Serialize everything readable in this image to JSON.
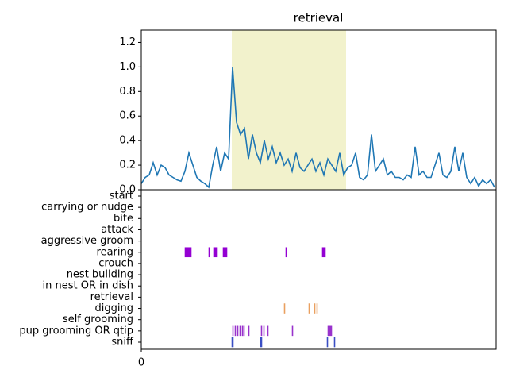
{
  "chart_data": [
    {
      "type": "line",
      "title": "retrieval",
      "color": "#1f77b4",
      "span": [
        114,
        258
      ],
      "span_color": "#f2f2cc",
      "xlim": [
        0,
        447
      ],
      "ylim": [
        0,
        1.3
      ],
      "yticks": [
        {
          "value": 0,
          "label": "0.0"
        },
        0.2,
        0.4,
        0.6,
        0.8,
        {
          "value": 1,
          "label": "1.0"
        },
        1.2
      ],
      "x": [
        0,
        5,
        10,
        15,
        20,
        25,
        30,
        35,
        40,
        45,
        50,
        55,
        60,
        65,
        70,
        75,
        80,
        85,
        90,
        95,
        100,
        105,
        110,
        115,
        120,
        125,
        130,
        135,
        140,
        145,
        150,
        155,
        160,
        165,
        170,
        175,
        180,
        185,
        190,
        195,
        200,
        205,
        210,
        215,
        220,
        225,
        230,
        235,
        240,
        245,
        250,
        255,
        260,
        265,
        270,
        275,
        280,
        285,
        290,
        295,
        300,
        305,
        310,
        315,
        320,
        325,
        330,
        335,
        340,
        345,
        350,
        355,
        360,
        365,
        370,
        375,
        380,
        385,
        390,
        395,
        400,
        405,
        410,
        415,
        420,
        425,
        430,
        435,
        440,
        445
      ],
      "values": [
        0.05,
        0.1,
        0.12,
        0.22,
        0.12,
        0.2,
        0.18,
        0.12,
        0.1,
        0.08,
        0.07,
        0.15,
        0.3,
        0.2,
        0.1,
        0.07,
        0.05,
        0.02,
        0.2,
        0.35,
        0.15,
        0.3,
        0.25,
        1.0,
        0.55,
        0.45,
        0.5,
        0.25,
        0.45,
        0.3,
        0.22,
        0.4,
        0.25,
        0.35,
        0.22,
        0.3,
        0.2,
        0.25,
        0.15,
        0.3,
        0.18,
        0.15,
        0.2,
        0.25,
        0.15,
        0.22,
        0.12,
        0.25,
        0.2,
        0.15,
        0.3,
        0.12,
        0.18,
        0.2,
        0.3,
        0.1,
        0.08,
        0.12,
        0.45,
        0.15,
        0.2,
        0.25,
        0.12,
        0.15,
        0.1,
        0.1,
        0.08,
        0.12,
        0.1,
        0.35,
        0.12,
        0.15,
        0.1,
        0.1,
        0.2,
        0.3,
        0.12,
        0.1,
        0.15,
        0.35,
        0.15,
        0.3,
        0.1,
        0.05,
        0.1,
        0.03,
        0.08,
        0.05,
        0.08,
        0.02
      ]
    },
    {
      "type": "ethogram",
      "xlim": [
        0,
        447
      ],
      "xticks": [
        0
      ],
      "rows": [
        {
          "name": "start",
          "color": "#9400d3",
          "events": []
        },
        {
          "name": "carrying or nudge",
          "color": "#9400d3",
          "events": []
        },
        {
          "name": "bite",
          "color": "#9400d3",
          "events": []
        },
        {
          "name": "attack",
          "color": "#9400d3",
          "events": []
        },
        {
          "name": "aggressive groom",
          "color": "#9400d3",
          "events": []
        },
        {
          "name": "rearing",
          "color": "#9400d3",
          "events": [
            [
              55,
              57
            ],
            [
              58,
              63
            ],
            [
              85,
              86
            ],
            [
              91,
              96
            ],
            [
              103,
              108
            ],
            [
              182,
              183
            ],
            [
              228,
              232
            ]
          ]
        },
        {
          "name": "crouch",
          "color": "#9400d3",
          "events": []
        },
        {
          "name": "nest building",
          "color": "#9400d3",
          "events": []
        },
        {
          "name": "in nest OR in dish",
          "color": "#9400d3",
          "events": []
        },
        {
          "name": "retrieval",
          "color": "#9400d3",
          "events": []
        },
        {
          "name": "digging",
          "color": "#eaa060",
          "events": [
            [
              180,
              181
            ],
            [
              211,
              212
            ],
            [
              218,
              219
            ],
            [
              221,
              222
            ]
          ]
        },
        {
          "name": "self grooming",
          "color": "#9400d3",
          "events": []
        },
        {
          "name": "pup grooming OR qtip",
          "color": "#9932cc",
          "events": [
            [
              115,
              116
            ],
            [
              118,
              119
            ],
            [
              121,
              122
            ],
            [
              124,
              125
            ],
            [
              127,
              128
            ],
            [
              129,
              130
            ],
            [
              135,
              136
            ],
            [
              151,
              152
            ],
            [
              154,
              155
            ],
            [
              159,
              160
            ],
            [
              190,
              191
            ],
            [
              235,
              240
            ]
          ]
        },
        {
          "name": "sniff",
          "color": "#3a4fc4",
          "events": [
            [
              114,
              116
            ],
            [
              150,
              152
            ],
            [
              234,
              235
            ],
            [
              243,
              244
            ]
          ]
        }
      ]
    }
  ]
}
